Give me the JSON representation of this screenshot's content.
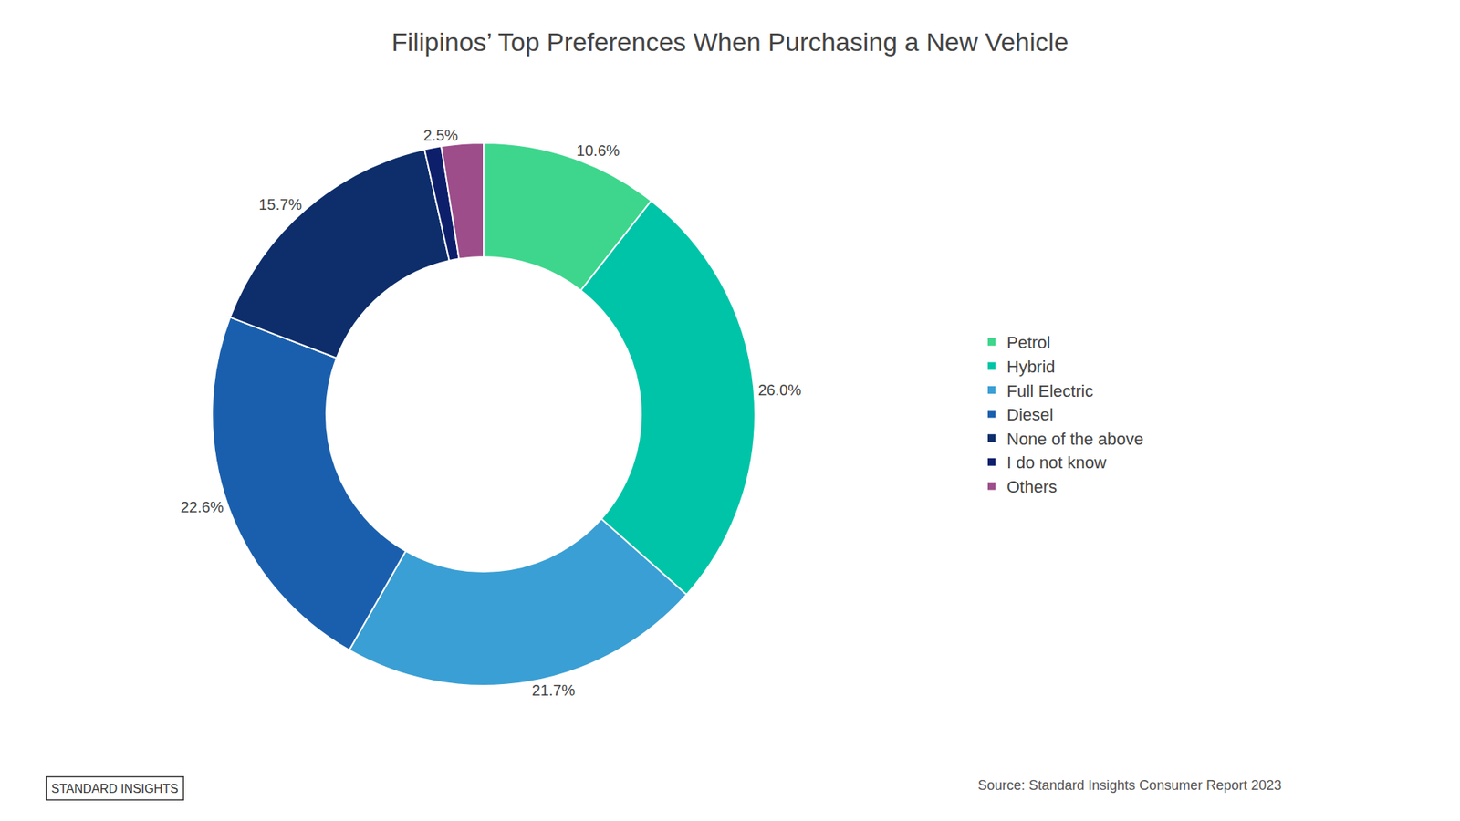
{
  "chart_data": {
    "type": "pie",
    "title": "Filipinos’ Top Preferences When Purchasing a New Vehicle",
    "categories": [
      "Petrol",
      "Hybrid",
      "Full Electric",
      "Diesel",
      "None of the above",
      "I do not know",
      "Others"
    ],
    "values": [
      10.6,
      26.0,
      21.7,
      22.6,
      15.7,
      1.0,
      2.5
    ],
    "value_labels": [
      "10.6%",
      "26.0%",
      "21.7%",
      "22.6%",
      "15.7%",
      null,
      "2.5%"
    ],
    "colors": [
      "#3dd68c",
      "#00c4a7",
      "#3a9fd4",
      "#1a5fad",
      "#0d2d6b",
      "#0d1f6b",
      "#9c4d8a"
    ],
    "data_labels": true,
    "legend": "right",
    "annotations": [
      "Source: Standard Insights Consumer Report 2023",
      "STANDARD INSIGHTS"
    ]
  }
}
